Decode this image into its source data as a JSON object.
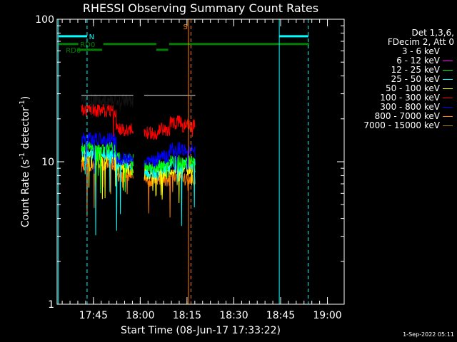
{
  "chart_data": {
    "type": "line",
    "title": "RHESSI Observing Summary Count Rates",
    "xlabel": "Start Time (08-Jun-17 17:33:22)",
    "ylabel_main": "Count Rate (s",
    "ylabel_sup": "-1",
    "ylabel_mid": " detector",
    "ylabel_sup2": "-1",
    "ylabel_end": ")",
    "yscale": "log",
    "ylim": [
      1,
      100
    ],
    "xlim_minutes": [
      0,
      92
    ],
    "x_ticks": [
      {
        "label": "17:45",
        "min": 11.63
      },
      {
        "label": "18:00",
        "min": 26.63
      },
      {
        "label": "18:15",
        "min": 41.63
      },
      {
        "label": "18:30",
        "min": 56.63
      },
      {
        "label": "18:45",
        "min": 71.63
      },
      {
        "label": "19:00",
        "min": 86.63
      }
    ],
    "y_ticks": [
      {
        "label": "1",
        "value": 1
      },
      {
        "label": "10",
        "value": 10
      },
      {
        "label": "100",
        "value": 100
      }
    ],
    "legend_header": [
      "Det 1,3,6,",
      "FDecim 2, Att 0"
    ],
    "series": [
      {
        "name": "3 - 6 keV",
        "color": "#000000",
        "levels": [
          27,
          27,
          27,
          27,
          26,
          26,
          26
        ],
        "min_value": 20
      },
      {
        "name": "6 - 12 keV",
        "color": "#ff00ff",
        "levels": [],
        "min_value": 0
      },
      {
        "name": "12 - 25 keV",
        "color": "#00ff00",
        "levels": [
          12.5,
          12.5,
          10.5,
          9,
          9.5,
          10,
          10
        ],
        "min_value": 6
      },
      {
        "name": "25 - 50 keV",
        "color": "#00ffff",
        "levels": [
          11.5,
          11.5,
          9.5,
          8.5,
          9,
          9.5,
          9.5
        ],
        "min_value": 3
      },
      {
        "name": "50 - 100 keV",
        "color": "#ffff00",
        "levels": [
          11,
          11,
          9,
          8.5,
          8.5,
          9,
          9
        ],
        "min_value": 5
      },
      {
        "name": "100 - 300 keV",
        "color": "#ff0000",
        "levels": [
          23,
          23,
          17,
          16,
          17,
          19,
          18
        ],
        "min_value": 14
      },
      {
        "name": "300 - 800 keV",
        "color": "#0000ff",
        "levels": [
          14.5,
          14.5,
          10.5,
          10,
          11,
          12.5,
          12
        ],
        "min_value": 8
      },
      {
        "name": "800 - 7000 keV",
        "color": "#ff8000",
        "levels": [
          9.5,
          9.5,
          8,
          7.5,
          7.5,
          8,
          7.5
        ],
        "min_value": 4
      },
      {
        "name": "7000 - 15000 keV",
        "color": "#a08000",
        "levels": [],
        "min_value": 0
      }
    ],
    "data_segments_minutes": [
      [
        7.8,
        24.4
      ],
      [
        27.9,
        44.3
      ]
    ],
    "segment_offsets_minutes": [
      0,
      36.3
    ],
    "vlines": [
      {
        "minute": 0.4,
        "color": "#00ffff",
        "style": "solid"
      },
      {
        "minute": 9.6,
        "color": "#00ffff",
        "style": "dashed"
      },
      {
        "minute": 42.1,
        "color": "#ff8000",
        "style": "solid"
      },
      {
        "minute": 42.9,
        "color": "#ff8000",
        "style": "dashed"
      },
      {
        "minute": 71.2,
        "color": "#00ffff",
        "style": "solid"
      },
      {
        "minute": 80.5,
        "color": "#00ffff",
        "style": "dashed"
      }
    ],
    "status_bars": [
      {
        "label": "N",
        "color": "#00ffff",
        "value": 76,
        "segments": [
          [
            0.4,
            9.6
          ],
          [
            71.2,
            80.5
          ]
        ],
        "label_minute": 10.2
      },
      {
        "label": "RD0",
        "color": "#008000",
        "value": 67,
        "segments": [
          [
            0.4,
            6.8
          ],
          [
            14.8,
            31.8
          ],
          [
            35.9,
            80.8
          ]
        ],
        "label_minute": 7.4
      },
      {
        "label": "RD6",
        "color": "#008000",
        "value": 61,
        "segments": [
          [
            6.7,
            14.4
          ],
          [
            31.8,
            35.6
          ]
        ],
        "label_minute": 2.8
      },
      {
        "label": "S",
        "color": "#ff8000",
        "value": 89,
        "segments": [],
        "label_minute": 40.4
      }
    ],
    "timestamp": "1-Sep-2022 05:11"
  }
}
